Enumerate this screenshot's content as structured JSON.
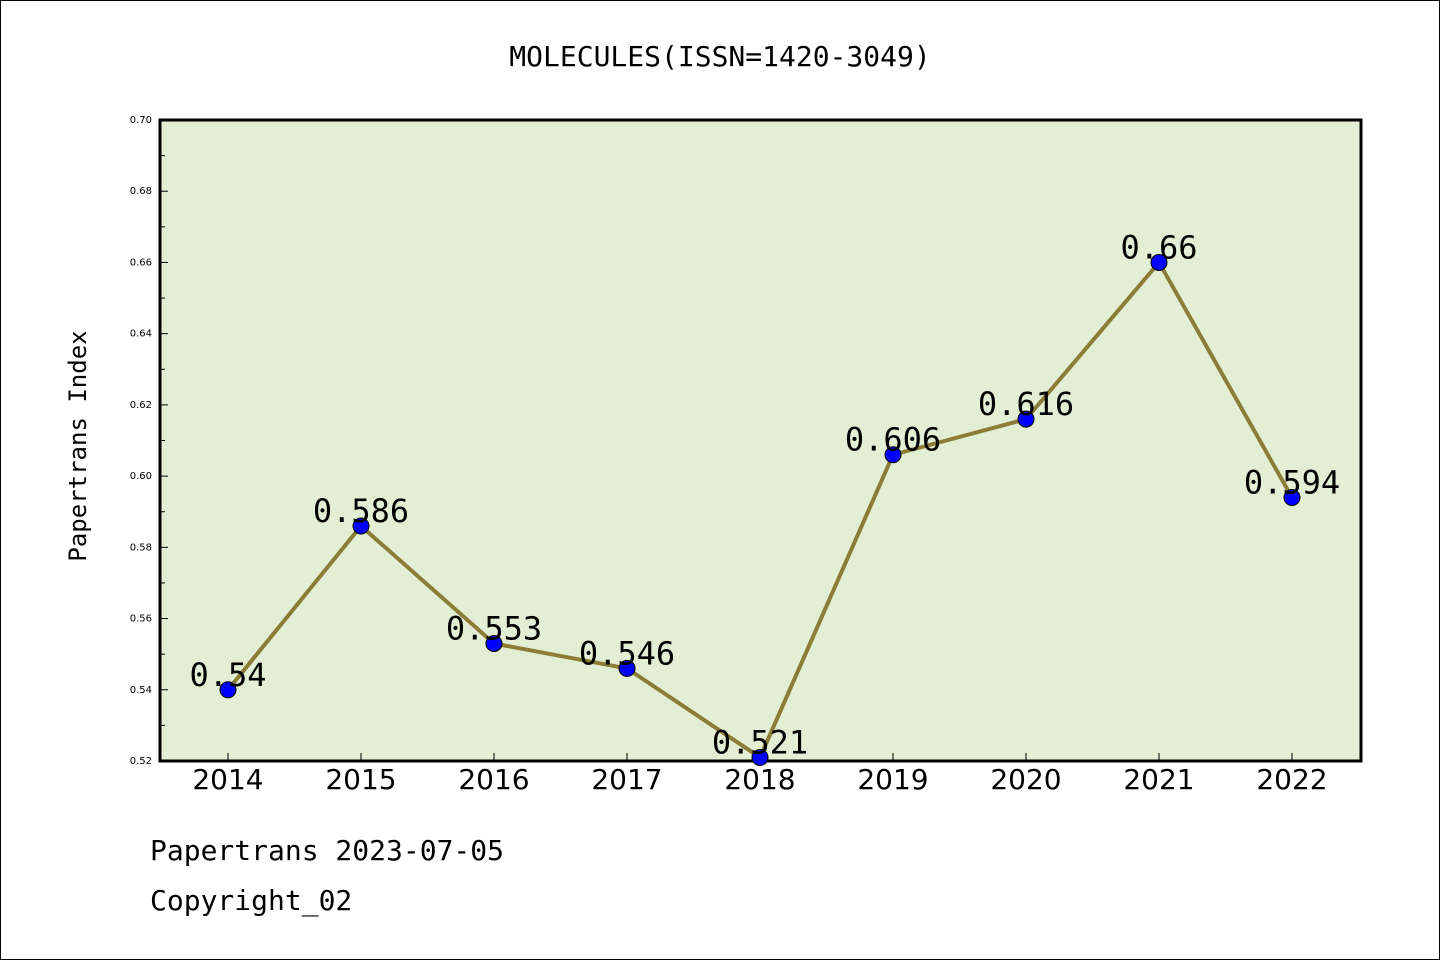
{
  "chart_data": {
    "type": "line",
    "title": "MOLECULES(ISSN=1420-3049)",
    "xlabel": "",
    "ylabel": "Papertrans Index",
    "categories": [
      "2014",
      "2015",
      "2016",
      "2017",
      "2018",
      "2019",
      "2020",
      "2021",
      "2022"
    ],
    "series": [
      {
        "values": [
          0.54,
          0.586,
          0.553,
          0.546,
          0.521,
          0.606,
          0.616,
          0.66,
          0.594
        ]
      }
    ],
    "data_labels": [
      "0.54",
      "0.586",
      "0.553",
      "0.546",
      "0.521",
      "0.606",
      "0.616",
      "0.66",
      "0.594"
    ],
    "ylim": [
      0.52,
      0.7
    ],
    "y_ticks": [
      "0.52",
      "0.54",
      "0.56",
      "0.58",
      "0.60",
      "0.62",
      "0.64",
      "0.66",
      "0.68",
      "0.70"
    ],
    "grid": false,
    "colors": {
      "plot_background": "#e2efd4",
      "line": "#8b7d36",
      "marker": "#0000ff",
      "axes": "#000000"
    }
  },
  "footer": {
    "source": "Papertrans 2023-07-05",
    "copyright": "Copyright_02"
  }
}
